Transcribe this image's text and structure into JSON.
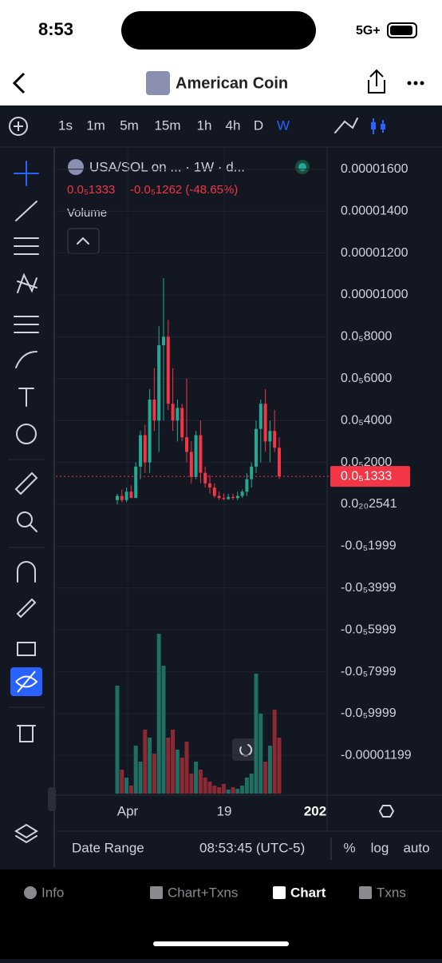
{
  "status": {
    "time": "8:53",
    "network": "5G+"
  },
  "header": {
    "title": "American Coin"
  },
  "toolbar": {
    "intervals": [
      "1s",
      "1m",
      "5m",
      "15m",
      "1h",
      "4h",
      "D",
      "W"
    ],
    "active": 7
  },
  "chart": {
    "legend": {
      "symbol": "USA/SOL on ... · 1W · d...",
      "price": "0.0₅1333",
      "change": "-0.0₅1262 (-48.65%)"
    },
    "volume_label": "Volume",
    "price_ticks": [
      {
        "value": 1.6e-05,
        "label": "0.00001600"
      },
      {
        "value": 1.4e-05,
        "label": "0.00001400"
      },
      {
        "value": 1.2e-05,
        "label": "0.00001200"
      },
      {
        "value": 1e-05,
        "label": "0.00001000"
      },
      {
        "value": 8e-06,
        "label": "0.0₅8000"
      },
      {
        "value": 6e-06,
        "label": "0.0₅6000"
      },
      {
        "value": 4e-06,
        "label": "0.0₅4000"
      },
      {
        "value": 2e-06,
        "label": "0.0₅2000"
      },
      {
        "value": 2.541e-21,
        "label": "0.0₂₀2541"
      },
      {
        "value": -1.999e-06,
        "label": "-0.0₅1999"
      },
      {
        "value": -3.999e-06,
        "label": "-0.0₅3999"
      },
      {
        "value": -5.999e-06,
        "label": "-0.0₅5999"
      },
      {
        "value": -7.999e-06,
        "label": "-0.0₅7999"
      },
      {
        "value": -9.999e-06,
        "label": "-0.0₅9999"
      },
      {
        "value": -1.199e-05,
        "label": "-0.00001199"
      }
    ],
    "last_price": {
      "value": 1.333e-06,
      "label": "0.0₅1333"
    },
    "candles": [
      [
        2e-07,
        5e-07,
        0.0,
        4e-07
      ],
      [
        4e-07,
        7e-07,
        1e-07,
        2e-07
      ],
      [
        2e-07,
        8e-07,
        1e-07,
        6e-07
      ],
      [
        6e-07,
        9e-07,
        3e-07,
        3e-07
      ],
      [
        3e-07,
        2e-06,
        3e-07,
        1.8e-06
      ],
      [
        1.8e-06,
        3.5e-06,
        1.2e-06,
        3.3e-06
      ],
      [
        3.3e-06,
        3.8e-06,
        1.5e-06,
        2e-06
      ],
      [
        2e-06,
        5.5e-06,
        1.5e-06,
        5e-06
      ],
      [
        5e-06,
        6.5e-06,
        3.5e-06,
        4e-06
      ],
      [
        4e-06,
        8.5e-06,
        2.5e-06,
        7.6e-06
      ],
      [
        7.6e-06,
        1.08e-05,
        4e-06,
        8e-06
      ],
      [
        8e-06,
        8.8e-06,
        4.5e-06,
        4.8e-06
      ],
      [
        4.8e-06,
        6.5e-06,
        3.5e-06,
        4e-06
      ],
      [
        4e-06,
        5e-06,
        3e-06,
        4.6e-06
      ],
      [
        4.6e-06,
        4.8e-06,
        3e-06,
        3.2e-06
      ],
      [
        3.2e-06,
        6e-06,
        2e-06,
        2.5e-06
      ],
      [
        2.5e-06,
        3e-06,
        1e-06,
        1.3e-06
      ],
      [
        1.3e-06,
        3.5e-06,
        1.2e-06,
        3.3e-06
      ],
      [
        3.3e-06,
        4e-06,
        1e-06,
        1.5e-06
      ],
      [
        1.5e-06,
        1.8e-06,
        8e-07,
        1e-06
      ],
      [
        1e-06,
        1.4e-06,
        5e-07,
        8e-07
      ],
      [
        8e-07,
        1e-06,
        3e-07,
        4e-07
      ],
      [
        4e-07,
        6e-07,
        2e-07,
        3e-07
      ],
      [
        3e-07,
        5e-07,
        2e-07,
        2.5e-07
      ],
      [
        2.5e-07,
        5e-07,
        2e-07,
        3.5e-07
      ],
      [
        3.5e-07,
        5e-07,
        2e-07,
        3e-07
      ],
      [
        3e-07,
        6e-07,
        2e-07,
        4e-07
      ],
      [
        4e-07,
        7e-07,
        3e-07,
        6e-07
      ],
      [
        6e-07,
        1.5e-06,
        4e-07,
        1.2e-06
      ],
      [
        1.2e-06,
        2e-06,
        8e-07,
        1.8e-06
      ],
      [
        1.8e-06,
        4e-06,
        1.5e-06,
        3.6e-06
      ],
      [
        3.6e-06,
        5e-06,
        2e-06,
        4.8e-06
      ],
      [
        4.8e-06,
        5.5e-06,
        2.5e-06,
        3e-06
      ],
      [
        3e-06,
        4e-06,
        2e-06,
        3.5e-06
      ],
      [
        3.5e-06,
        4.5e-06,
        2.5e-06,
        2.7e-06
      ],
      [
        2.7e-06,
        3.2e-06,
        1.2e-06,
        1.333e-06
      ]
    ],
    "volumes": [
      135,
      30,
      20,
      10,
      60,
      40,
      80,
      70,
      50,
      200,
      160,
      70,
      80,
      55,
      45,
      65,
      25,
      40,
      30,
      20,
      15,
      10,
      8,
      12,
      5,
      8,
      6,
      10,
      20,
      25,
      150,
      100,
      40,
      60,
      105,
      70
    ],
    "time_labels": [
      "Apr",
      "19",
      "202"
    ]
  },
  "footer": {
    "date_range": "Date Range",
    "clock": "08:53:45 (UTC-5)",
    "options": [
      "%",
      "log",
      "auto"
    ]
  },
  "tabs": {
    "items": [
      "Info",
      "Chart+Txns",
      "Chart",
      "Txns"
    ],
    "active": 2
  }
}
